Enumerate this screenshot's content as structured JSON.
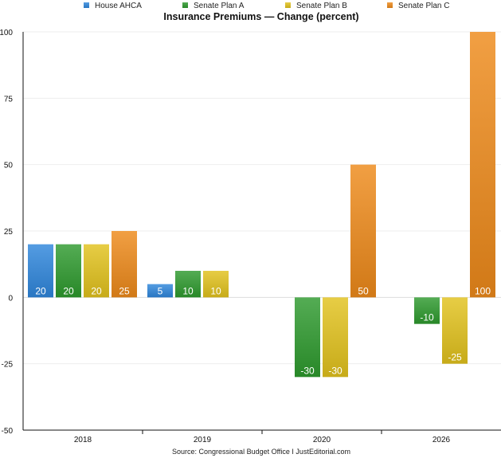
{
  "chart_data": {
    "type": "bar",
    "title": "Insurance Premiums — Change (percent)",
    "categories": [
      "2018",
      "2019",
      "2020",
      "2026"
    ],
    "series": [
      {
        "name": "House AHCA",
        "color": "#2f86dc",
        "values": [
          20,
          5,
          null,
          null
        ]
      },
      {
        "name": "Senate Plan A",
        "color": "#2e9a2e",
        "values": [
          20,
          10,
          -30,
          -10
        ]
      },
      {
        "name": "Senate Plan B",
        "color": "#e2c21c",
        "values": [
          20,
          10,
          -30,
          -25
        ]
      },
      {
        "name": "Senate Plan C",
        "color": "#ee8a1a",
        "values": [
          25,
          null,
          50,
          100
        ]
      }
    ],
    "data_labels": [
      [
        "20",
        "5",
        "",
        ""
      ],
      [
        "20",
        "10",
        "-30",
        "-10"
      ],
      [
        "20",
        "10",
        "-30",
        "-25"
      ],
      [
        "25",
        "",
        "50",
        "100"
      ]
    ],
    "ylim": [
      -50,
      100
    ],
    "yticks": [
      -50,
      -25,
      0,
      25,
      50,
      75,
      100
    ],
    "ytick_labels": [
      "-50",
      "-25",
      "0",
      "25",
      "50",
      "75",
      "100"
    ],
    "xlabel": "",
    "ylabel": "",
    "legend_position": "top",
    "grid": true,
    "source": "Source: Congressional Budget Office I JustEditorial.com"
  }
}
